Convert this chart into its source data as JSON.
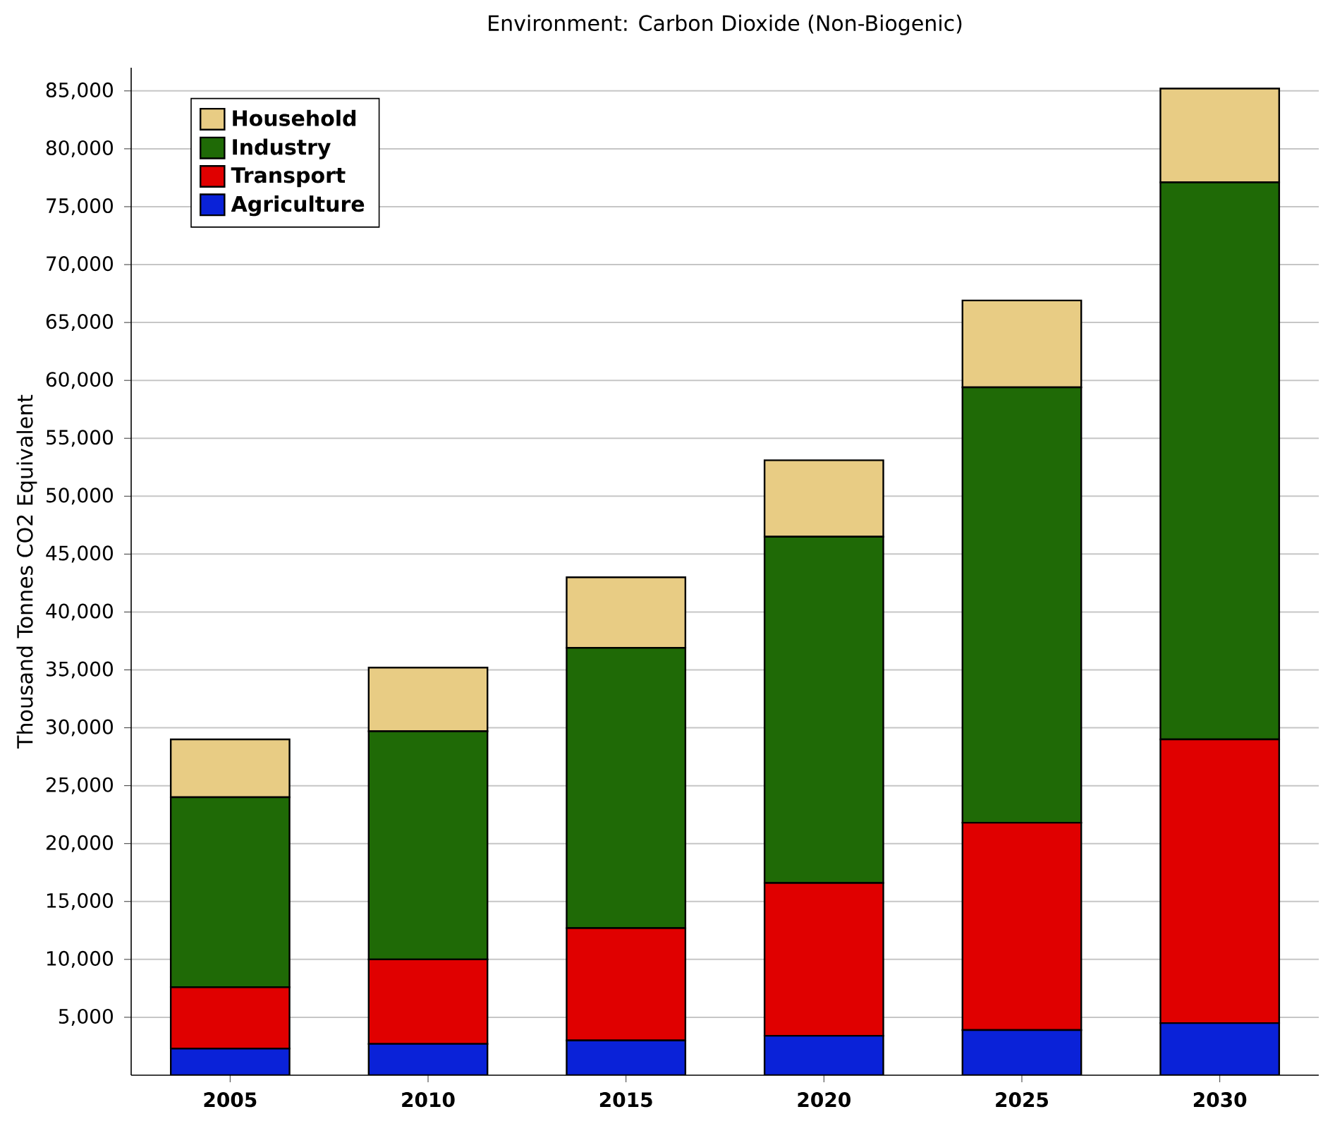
{
  "chart_data": {
    "type": "bar",
    "title": "Environment: Carbon Dioxide (Non-Biogenic)",
    "ylabel": "Thousand Tonnes CO2 Equivalent",
    "categories": [
      "2005",
      "2010",
      "2015",
      "2020",
      "2025",
      "2030"
    ],
    "stacked": true,
    "series": [
      {
        "name": "Agriculture",
        "color": "#0a22d8",
        "values": [
          2300,
          2700,
          3000,
          3400,
          3900,
          4500
        ]
      },
      {
        "name": "Transport",
        "color": "#e00000",
        "values": [
          5300,
          7300,
          9700,
          13200,
          17900,
          24500
        ]
      },
      {
        "name": "Industry",
        "color": "#1f6a06",
        "values": [
          16400,
          19700,
          24200,
          29900,
          37600,
          48100
        ]
      },
      {
        "name": "Household",
        "color": "#e8cc84",
        "values": [
          5000,
          5500,
          6100,
          6600,
          7500,
          8100
        ]
      }
    ],
    "ylim": [
      0,
      87000
    ],
    "yticks": [
      {
        "value": 5000,
        "label": "5,000"
      },
      {
        "value": 10000,
        "label": "10,000"
      },
      {
        "value": 15000,
        "label": "15,000"
      },
      {
        "value": 20000,
        "label": "20,000"
      },
      {
        "value": 25000,
        "label": "25,000"
      },
      {
        "value": 30000,
        "label": "30,000"
      },
      {
        "value": 35000,
        "label": "35,000"
      },
      {
        "value": 40000,
        "label": "40,000"
      },
      {
        "value": 45000,
        "label": "45,000"
      },
      {
        "value": 50000,
        "label": "50,000"
      },
      {
        "value": 55000,
        "label": "55,000"
      },
      {
        "value": 60000,
        "label": "60,000"
      },
      {
        "value": 65000,
        "label": "65,000"
      },
      {
        "value": 70000,
        "label": "70,000"
      },
      {
        "value": 75000,
        "label": "75,000"
      },
      {
        "value": 80000,
        "label": "80,000"
      },
      {
        "value": 85000,
        "label": "85,000"
      }
    ],
    "grid": "y",
    "legend": "top left"
  }
}
